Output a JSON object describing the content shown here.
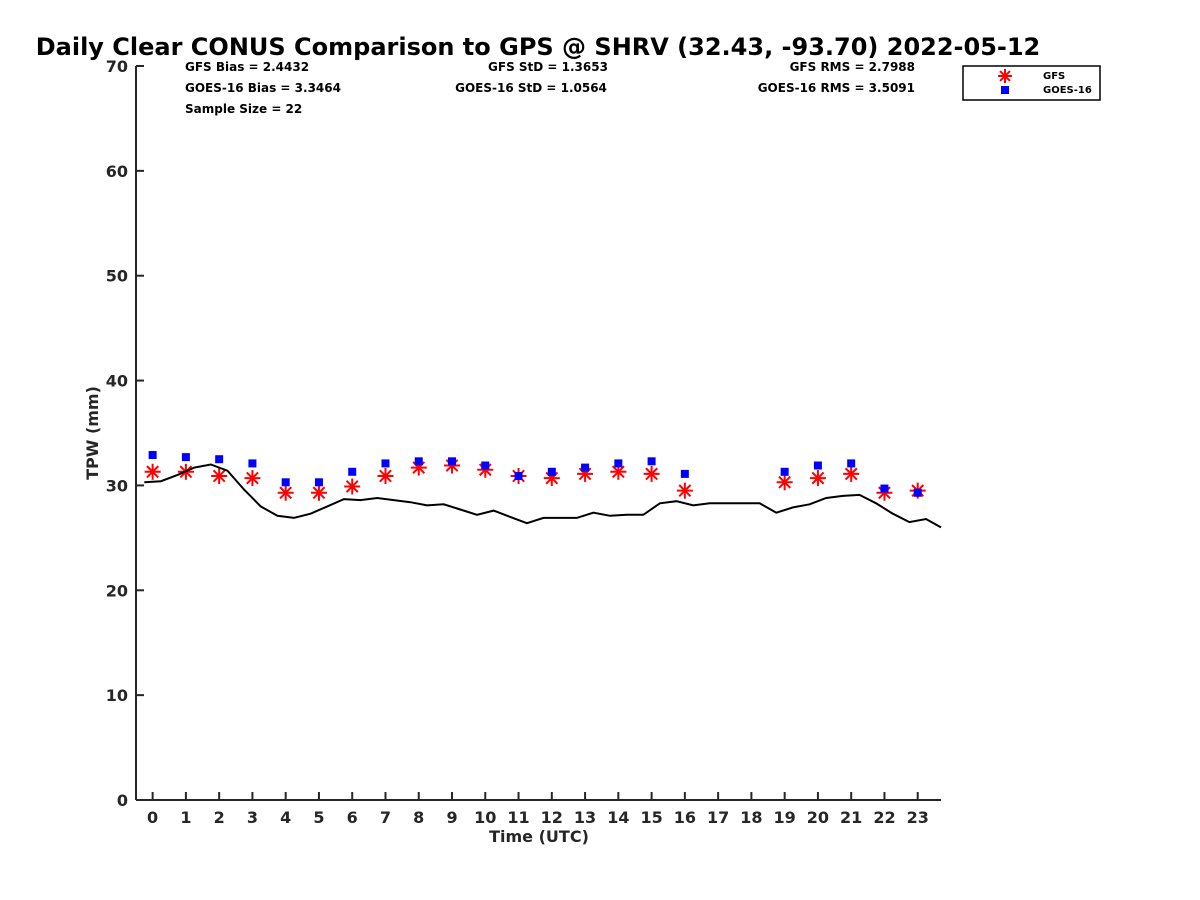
{
  "chart_data": {
    "type": "scatter",
    "title": "Daily Clear CONUS Comparison to GPS @ SHRV (32.43, -93.70) 2022-05-12",
    "xlabel": "Time (UTC)",
    "ylabel": "TPW (mm)",
    "xlim": [
      -0.5,
      23.7
    ],
    "ylim": [
      0,
      70
    ],
    "xticks": [
      0,
      1,
      2,
      3,
      4,
      5,
      6,
      7,
      8,
      9,
      10,
      11,
      12,
      13,
      14,
      15,
      16,
      17,
      18,
      19,
      20,
      21,
      22,
      23
    ],
    "yticks": [
      0,
      10,
      20,
      30,
      40,
      50,
      60,
      70
    ],
    "grid": false,
    "legend_position": "top-right",
    "stats": {
      "gfs_bias": "GFS Bias = 2.4432",
      "goes_bias": "GOES-16 Bias = 3.3464",
      "sample_size": "Sample Size = 22",
      "gfs_std": "GFS StD = 1.3653",
      "goes_std": "GOES-16 StD = 1.0564",
      "gfs_rms": "GFS RMS = 2.7988",
      "goes_rms": "GOES-16 RMS = 3.5091"
    },
    "series": [
      {
        "name": "GFS",
        "marker": "asterisk",
        "color": "#ff0000",
        "points": [
          [
            0,
            31.3
          ],
          [
            1,
            31.3
          ],
          [
            2,
            30.9
          ],
          [
            3,
            30.7
          ],
          [
            4,
            29.3
          ],
          [
            5,
            29.3
          ],
          [
            6,
            29.9
          ],
          [
            7,
            30.9
          ],
          [
            8,
            31.7
          ],
          [
            9,
            31.9
          ],
          [
            10,
            31.5
          ],
          [
            11,
            30.9
          ],
          [
            12,
            30.7
          ],
          [
            13,
            31.1
          ],
          [
            14,
            31.3
          ],
          [
            15,
            31.1
          ],
          [
            16,
            29.5
          ],
          [
            19,
            30.3
          ],
          [
            20,
            30.7
          ],
          [
            21,
            31.1
          ],
          [
            22,
            29.3
          ],
          [
            23,
            29.5
          ]
        ]
      },
      {
        "name": "GOES-16",
        "marker": "square",
        "color": "#0000ff",
        "points": [
          [
            0,
            32.9
          ],
          [
            1,
            32.7
          ],
          [
            2,
            32.5
          ],
          [
            3,
            32.1
          ],
          [
            4,
            30.3
          ],
          [
            5,
            30.3
          ],
          [
            6,
            31.3
          ],
          [
            7,
            32.1
          ],
          [
            8,
            32.3
          ],
          [
            9,
            32.3
          ],
          [
            10,
            31.9
          ],
          [
            11,
            30.9
          ],
          [
            12,
            31.3
          ],
          [
            13,
            31.7
          ],
          [
            14,
            32.1
          ],
          [
            15,
            32.3
          ],
          [
            16,
            31.1
          ],
          [
            19,
            31.3
          ],
          [
            20,
            31.9
          ],
          [
            21,
            32.1
          ],
          [
            22,
            29.7
          ],
          [
            23,
            29.3
          ]
        ]
      },
      {
        "name": "GPS",
        "marker": "line",
        "color": "#000000",
        "points": [
          [
            -0.25,
            30.3
          ],
          [
            0.25,
            30.4
          ],
          [
            0.75,
            31.0
          ],
          [
            1.25,
            31.7
          ],
          [
            1.75,
            32.0
          ],
          [
            2.25,
            31.4
          ],
          [
            2.75,
            29.6
          ],
          [
            3.25,
            28.0
          ],
          [
            3.75,
            27.1
          ],
          [
            4.25,
            26.9
          ],
          [
            4.75,
            27.3
          ],
          [
            5.25,
            28.0
          ],
          [
            5.75,
            28.7
          ],
          [
            6.25,
            28.6
          ],
          [
            6.75,
            28.8
          ],
          [
            7.25,
            28.6
          ],
          [
            7.75,
            28.4
          ],
          [
            8.25,
            28.1
          ],
          [
            8.75,
            28.2
          ],
          [
            9.25,
            27.7
          ],
          [
            9.75,
            27.2
          ],
          [
            10.25,
            27.6
          ],
          [
            10.75,
            27.0
          ],
          [
            11.25,
            26.4
          ],
          [
            11.75,
            26.9
          ],
          [
            12.25,
            26.9
          ],
          [
            12.75,
            26.9
          ],
          [
            13.25,
            27.4
          ],
          [
            13.75,
            27.1
          ],
          [
            14.25,
            27.2
          ],
          [
            14.75,
            27.2
          ],
          [
            15.25,
            28.3
          ],
          [
            15.75,
            28.5
          ],
          [
            16.25,
            28.1
          ],
          [
            16.75,
            28.3
          ],
          [
            17.25,
            28.3
          ],
          [
            17.75,
            28.3
          ],
          [
            18.25,
            28.3
          ],
          [
            18.75,
            27.4
          ],
          [
            19.25,
            27.9
          ],
          [
            19.75,
            28.2
          ],
          [
            20.25,
            28.8
          ],
          [
            20.75,
            29.0
          ],
          [
            21.25,
            29.1
          ],
          [
            21.75,
            28.3
          ],
          [
            22.25,
            27.3
          ],
          [
            22.75,
            26.5
          ],
          [
            23.25,
            26.8
          ],
          [
            23.7,
            26.0
          ]
        ]
      }
    ],
    "legend": [
      {
        "name": "GFS",
        "marker": "asterisk",
        "color": "#ff0000"
      },
      {
        "name": "GOES-16",
        "marker": "square",
        "color": "#0000ff"
      }
    ]
  }
}
